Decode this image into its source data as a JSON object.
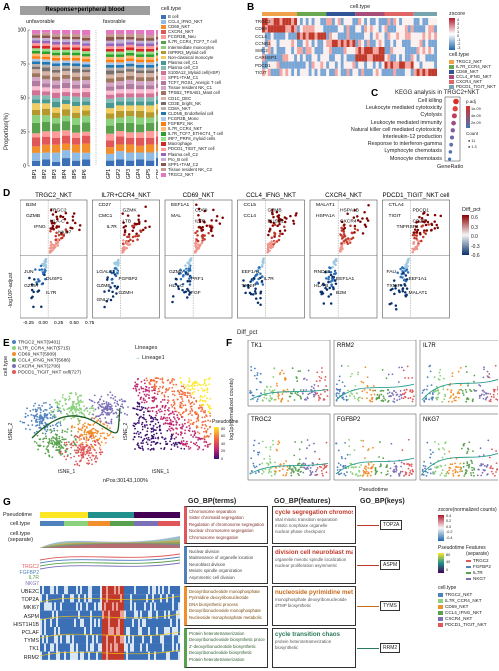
{
  "panels": {
    "A": "A",
    "B": "B",
    "C": "C",
    "D": "D",
    "E": "E",
    "F": "F",
    "G": "G"
  },
  "panelA": {
    "header": "Response+peripheral blood",
    "group_unfav": "unfavorable",
    "group_fav": "favorable",
    "ylabel": "Proportion(%)",
    "legend_title": "cell.type",
    "yticks": [
      "100",
      "75",
      "50",
      "25",
      "0"
    ],
    "samples": [
      "BP1",
      "BP2",
      "BP3",
      "BP4",
      "BP5",
      "BP6",
      "GP1",
      "GP2",
      "GP3",
      "GP4",
      "GP5",
      "GP6"
    ],
    "celltypes": [
      {
        "name": "B cell",
        "color": "#3b6fb6"
      },
      {
        "name": "CCL4_IFNG_NKT",
        "color": "#8fbce6"
      },
      {
        "name": "CD69_NKT",
        "color": "#f28e2b"
      },
      {
        "name": "CXCR4_NKT",
        "color": "#e15759"
      },
      {
        "name": "FCGR3B_Neu",
        "color": "#ff9d9a"
      },
      {
        "name": "IL7R_CCR4_TCF7_T cell",
        "color": "#59a14f"
      },
      {
        "name": "Intermediate monocytes",
        "color": "#8cd17d"
      },
      {
        "name": "ISPRR3_Myloid cell",
        "color": "#b6992d"
      },
      {
        "name": "Non-classical monocyte",
        "color": "#f1ce63"
      },
      {
        "name": "Plasma cell_C1",
        "color": "#499894"
      },
      {
        "name": "Plasma cell_C3",
        "color": "#86bcb6"
      },
      {
        "name": "S100A12_Myloid cell(HSP)",
        "color": "#d37295"
      },
      {
        "name": "SPP1+TAM_C1",
        "color": "#fabfd2"
      },
      {
        "name": "TCF7_RGS1_Anergic T cell",
        "color": "#b07aa1"
      },
      {
        "name": "Tissue resident NK_C1",
        "color": "#d4a6c8"
      },
      {
        "name": "TPSB2_TPSAB1_Mast cell",
        "color": "#9d7660"
      },
      {
        "name": "CD1C_DEC",
        "color": "#d7b5a6"
      },
      {
        "name": "CD3E_bright_NK",
        "color": "#79706e"
      },
      {
        "name": "CD8A_NKT",
        "color": "#bab0ac"
      },
      {
        "name": "CLDN5_Endothelial cell",
        "color": "#1f77b4"
      },
      {
        "name": "FCGR3B_Mono",
        "color": "#aec7e8"
      },
      {
        "name": "FGFBP2_NK",
        "color": "#ff7f0e"
      },
      {
        "name": "IL7R_CCR4_NKT",
        "color": "#ffbb78"
      },
      {
        "name": "IL7R_TCF7_ETHICT4_T cell",
        "color": "#2ca02c"
      },
      {
        "name": "IRF7_PRF8_myloid cells",
        "color": "#98df8a"
      },
      {
        "name": "Macrophage",
        "color": "#d62728"
      },
      {
        "name": "PDCD1_TIGIT_NKT cell",
        "color": "#ff9896"
      },
      {
        "name": "Plasma cell_C2",
        "color": "#9467bd"
      },
      {
        "name": "Pro_B cell",
        "color": "#c5b0d5"
      },
      {
        "name": "SPP1+TAM_C2",
        "color": "#8c564b"
      },
      {
        "name": "Tissue resident NK_C2",
        "color": "#c49c94"
      },
      {
        "name": "TRGC2_NKT",
        "color": "#e377c2"
      }
    ],
    "bars": [
      [
        4,
        6,
        5,
        7,
        3,
        8,
        6,
        4,
        5,
        3,
        3,
        4,
        3,
        4,
        3,
        3,
        3,
        2,
        2,
        2,
        2,
        2,
        2,
        2,
        2,
        2,
        2,
        2,
        2,
        2,
        1,
        3
      ],
      [
        5,
        5,
        6,
        6,
        4,
        7,
        5,
        5,
        4,
        3,
        3,
        3,
        3,
        3,
        3,
        3,
        3,
        3,
        2,
        2,
        2,
        2,
        2,
        2,
        2,
        2,
        2,
        2,
        2,
        2,
        2,
        2
      ],
      [
        3,
        7,
        6,
        5,
        5,
        6,
        4,
        4,
        4,
        4,
        3,
        4,
        3,
        3,
        3,
        3,
        3,
        2,
        3,
        2,
        2,
        2,
        2,
        2,
        2,
        2,
        2,
        2,
        2,
        2,
        2,
        3
      ],
      [
        6,
        6,
        5,
        6,
        4,
        7,
        4,
        5,
        4,
        3,
        3,
        3,
        3,
        4,
        3,
        3,
        3,
        2,
        2,
        2,
        2,
        2,
        2,
        2,
        2,
        2,
        2,
        2,
        2,
        2,
        2,
        3
      ],
      [
        4,
        6,
        6,
        5,
        4,
        6,
        5,
        4,
        5,
        3,
        4,
        3,
        3,
        3,
        3,
        3,
        3,
        3,
        2,
        2,
        2,
        2,
        2,
        2,
        2,
        2,
        2,
        2,
        2,
        2,
        2,
        3
      ],
      [
        5,
        5,
        7,
        6,
        3,
        7,
        5,
        4,
        4,
        3,
        3,
        4,
        3,
        3,
        3,
        3,
        3,
        2,
        2,
        2,
        2,
        2,
        2,
        2,
        2,
        2,
        2,
        2,
        2,
        2,
        2,
        4
      ],
      [
        4,
        5,
        5,
        5,
        5,
        6,
        5,
        4,
        4,
        4,
        3,
        3,
        3,
        3,
        3,
        3,
        3,
        3,
        2,
        2,
        2,
        2,
        2,
        2,
        2,
        2,
        2,
        2,
        2,
        3,
        2,
        3
      ],
      [
        5,
        6,
        5,
        6,
        4,
        6,
        4,
        5,
        4,
        3,
        3,
        3,
        3,
        3,
        3,
        3,
        3,
        2,
        2,
        2,
        2,
        2,
        2,
        2,
        2,
        2,
        2,
        2,
        3,
        2,
        2,
        3
      ],
      [
        4,
        6,
        6,
        5,
        4,
        7,
        5,
        4,
        4,
        3,
        3,
        3,
        3,
        4,
        3,
        3,
        3,
        2,
        2,
        2,
        2,
        2,
        2,
        2,
        2,
        2,
        2,
        2,
        2,
        2,
        2,
        3
      ],
      [
        5,
        5,
        5,
        6,
        4,
        6,
        5,
        5,
        4,
        3,
        3,
        3,
        3,
        3,
        3,
        3,
        3,
        2,
        2,
        2,
        2,
        2,
        2,
        2,
        2,
        2,
        2,
        2,
        2,
        2,
        3,
        3
      ],
      [
        4,
        6,
        6,
        5,
        5,
        6,
        4,
        4,
        5,
        3,
        3,
        3,
        3,
        3,
        3,
        3,
        3,
        2,
        2,
        2,
        2,
        2,
        2,
        2,
        2,
        2,
        2,
        2,
        2,
        2,
        2,
        4
      ],
      [
        6,
        5,
        5,
        6,
        4,
        7,
        5,
        4,
        4,
        3,
        3,
        3,
        3,
        3,
        3,
        3,
        3,
        2,
        2,
        2,
        2,
        2,
        2,
        2,
        2,
        2,
        2,
        2,
        2,
        2,
        2,
        3
      ]
    ]
  },
  "panelB": {
    "legend_title": "cell.type",
    "genes": [
      "TRGC2",
      "CD69",
      "CCL4",
      "CCNB1",
      "SMC2",
      "CARHSP1",
      "PDCD1",
      "TIGIT"
    ],
    "zscore_title": "zscore",
    "zscore_ticks": [
      "4",
      "3",
      "2",
      "1",
      "0",
      "-1",
      "-2",
      "-3"
    ],
    "celltype_title": "cell.type",
    "celltypes": [
      {
        "name": "TRGC2_NKT",
        "color": "#f0a24b"
      },
      {
        "name": "IL7R_CCR4_NKT",
        "color": "#6aa84f"
      },
      {
        "name": "CD69_NKT",
        "color": "#2f5597"
      },
      {
        "name": "CCL4_IFNG_NKT",
        "color": "#a64d79"
      },
      {
        "name": "CXCR4_NKT",
        "color": "#e06666"
      },
      {
        "name": "PDCD1_TIGIT_NKT",
        "color": "#76a5af"
      }
    ]
  },
  "panelC": {
    "title": "KEGG analysis in TRGC2+NKT",
    "terms": [
      "Cell killing",
      "Leukocyte mediated cytotoxicity",
      "Cytolysis",
      "Leukocyte mediated immunity",
      "Natural killer cell mediated cytotoxicity",
      "Interleukin-12 production",
      "Response to interferon-gamma",
      "Lymphocyte chemotaxis",
      "Monocyte chemotaxis"
    ],
    "xlabel": "GeneRatio",
    "padj_title": "p.adj",
    "padj_ticks": [
      "1e-09",
      "4e-09",
      "2e-09"
    ],
    "count_title": "Count",
    "count_ticks": [
      "11",
      "1.3"
    ]
  },
  "panelD": {
    "ylabel": "-log10P-adjust",
    "xlabel": "Diff_pct",
    "legend_title": "Diff_pct",
    "legend_ticks": [
      "0.6",
      "0.3",
      "0.0",
      "-0.3",
      "-0.6"
    ],
    "xticks": [
      "-0.25",
      "0.00",
      "0.25",
      "0.50",
      "0.75"
    ],
    "plots": [
      {
        "title": "TRGC2_NKT",
        "up": [
          "B2M",
          "TRGC2",
          "GZMB",
          "HLA-C",
          "IFNG",
          "NKG7"
        ],
        "down": [
          "JUN",
          "DUSP1",
          "GZMA",
          "IL7R"
        ]
      },
      {
        "title": "IL7R+CCR4_NKT",
        "up": [
          "CD27",
          "GZMK",
          "CMC1",
          "LTB",
          "IL7R"
        ],
        "down": [
          "LGALS1",
          "FGFBP2",
          "GZMB",
          "GZMH",
          "GNLY"
        ]
      },
      {
        "title": "CD69_NKT",
        "up": [
          "EEF1A1",
          "CD69",
          "MAL",
          "IL7R"
        ],
        "down": [
          "GZMA",
          "PRF1",
          "HLA-C",
          "FGF"
        ]
      },
      {
        "title": "CCL4_IFNG_NKT",
        "up": [
          "CCL5",
          "GZMB",
          "CCL4",
          "DUSP2"
        ],
        "down": [
          "EEF1A1",
          "IL7R",
          "TXNIP"
        ]
      },
      {
        "title": "CXCR4_NKT",
        "up": [
          "MALAT1",
          "HSPA1B",
          "HSPA1A",
          "CXCR4"
        ],
        "down": [
          "RNDK1",
          "EEF1A1",
          "HLA-B",
          "B2M"
        ]
      },
      {
        "title": "PDCD1_TIGIT_NKT cell",
        "up": [
          "CTLA4",
          "PDCD1",
          "TIGIT",
          "CD27",
          "TNFRSF4"
        ],
        "down": [
          "FAU",
          "EEF1A1",
          "TXNIP",
          "MALAT1"
        ]
      }
    ]
  },
  "panelE": {
    "legend_title": "cell.type",
    "items": [
      {
        "name": "TRGC2_NKT(9401)",
        "color": "#4f81bd"
      },
      {
        "name": "IL7R_CCR4_NKT(5715)",
        "color": "#8cd17d"
      },
      {
        "name": "CD69_NKT(5909)",
        "color": "#f28e2b"
      },
      {
        "name": "CCL4_IFNG_NKT(5686)",
        "color": "#59a14f"
      },
      {
        "name": "CXCR4_NKT(2706)",
        "color": "#7b6fb7"
      },
      {
        "name": "PDCD1_TIGIT_NKT cell(727)",
        "color": "#e15759"
      }
    ],
    "lineage_title": "Lineages",
    "lineage_item": "Lineage1",
    "footer": "nPos:30143,100%",
    "xlabel": "tSNE_1",
    "ylabel": "tSNE_2",
    "pseudotime_title": "Pseudotime",
    "pseudotime_ticks": [
      "80",
      "60",
      "40",
      "20",
      "0"
    ]
  },
  "panelF": {
    "ylabel": "log1p(normalized counts)",
    "xlabel": "Pseudotime",
    "genes": [
      "TK1",
      "RRM2",
      "IL7R",
      "TRGC2",
      "FGFBP2",
      "NKG7"
    ]
  },
  "panelG": {
    "row_labels": [
      "Pseudotime",
      "cell.type",
      "cell.type\n(separate)"
    ],
    "left_genes_colored": [
      "TRGC2",
      "FGFBP2",
      "IL7R",
      "NKG7"
    ],
    "left_genes": [
      "UBE2C",
      "TOP2A",
      "MKI67",
      "ASPM",
      "HIST1H1B",
      "PCLAF",
      "TYMS",
      "TK1",
      "RRM2"
    ],
    "head_terms": "GO_BP(terms)",
    "head_features": "GO_BP(features)",
    "head_keys": "GO_BP(keys)",
    "blocks": [
      {
        "terms": [
          "Chromosome separation",
          "Sister chromatid segregation",
          "Regulation of chromosome segregation",
          "Nuclear chromosome segregation",
          "Chromosome segregation"
        ],
        "features": [
          "cycle segregation chromosome",
          "vital mitotic transition separation",
          "mitotic nonphase organelle",
          "nuclear phase checkpoint"
        ],
        "key": "TOP2A"
      },
      {
        "terms": [
          "Nuclear division",
          "Maintenance of organelle location",
          "Neuroblast division",
          "Meiotic spindle organization",
          "Asymmetric cell division"
        ],
        "features": [
          "division cell neuroblast maintenance",
          "organelle meiotic spindle localization",
          "nuclear proliferation asymmetric"
        ],
        "key": "ASPM"
      },
      {
        "terms": [
          "Deoxyribonucleotide monophosphate",
          "Pyrimidine deoxyribonucleotide",
          "DNA biosynthetic process",
          "Deoxyribonucleoside monophosphate",
          "Nucleoside monophosphate metabolic"
        ],
        "features": [
          "nucleoside pyrimidine metabolic",
          "monophosphate deoxyribonucleotide",
          "dTMP biosynthetic"
        ],
        "key": "TYMS"
      },
      {
        "terms": [
          "Protein heterotetramerization",
          "Deoxyribonucleoside biosynthetic process",
          "2'-deoxyribonucleotide biosynthetic",
          "Deoxyribonucleotide biosynthetic",
          "Protein heterotetramerization"
        ],
        "features": [
          "cycle transition chaos",
          "protein heterotetramerization",
          "biosynthetic"
        ],
        "key": "RRM2"
      }
    ],
    "zscore_title": "zscore(normalized counts)",
    "zscore_ticks": [
      "0.4",
      "0.2",
      "0.0",
      "-0.2",
      "-0.4"
    ],
    "pseudo_title": "Pseudotime",
    "pseudo_ticks": [
      "80",
      "40",
      "0"
    ],
    "features_title": "Features\n(separate)",
    "features": [
      {
        "name": "TRGC2",
        "color": "#e15759"
      },
      {
        "name": "FGFBP2",
        "color": "#4f81bd"
      },
      {
        "name": "IL7R",
        "color": "#59a14f"
      },
      {
        "name": "NKG7",
        "color": "#7b6fb7"
      }
    ],
    "celltype_title": "cell.type",
    "celltypes": [
      {
        "name": "TRGC2_NKT",
        "color": "#4f81bd"
      },
      {
        "name": "IL7R_CCR4_NKT",
        "color": "#8cd17d"
      },
      {
        "name": "CD69_NKT",
        "color": "#f28e2b"
      },
      {
        "name": "CCL4_IFNG_NKT",
        "color": "#59a14f"
      },
      {
        "name": "CXCR4_NKT",
        "color": "#7b6fb7"
      },
      {
        "name": "PDCD1_TIGIT_NKT",
        "color": "#e15759"
      }
    ]
  }
}
